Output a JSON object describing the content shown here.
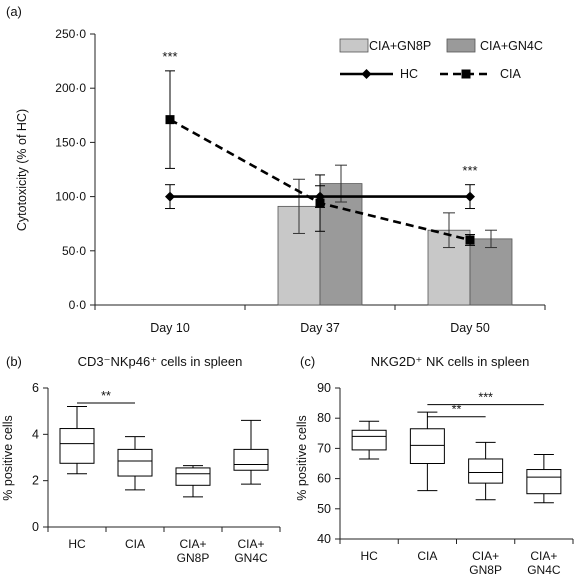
{
  "colors": {
    "axis": "#222222",
    "line": "#000000",
    "bar_light": "#c8c8c8",
    "bar_dark": "#9a9a9a",
    "box_fill": "#ffffff"
  },
  "chart_data": [
    {
      "panel": "(a)",
      "type": "bar",
      "ylabel": "Cytotoxicity (% of HC)",
      "ylim": [
        0,
        250
      ],
      "yticks": [
        "0·0",
        "50·0",
        "100·0",
        "150·0",
        "200·0",
        "250·0"
      ],
      "ytick_values": [
        0,
        50,
        100,
        150,
        200,
        250
      ],
      "categories": [
        "Day 10",
        "Day 37",
        "Day 50"
      ],
      "bar_series": [
        {
          "name": "CIA+GN8P",
          "values": [
            null,
            91,
            69
          ],
          "errors": [
            null,
            25,
            16
          ]
        },
        {
          "name": "CIA+GN4C",
          "values": [
            null,
            112,
            61
          ],
          "errors": [
            null,
            17,
            8
          ]
        }
      ],
      "line_series": [
        {
          "name": "HC",
          "marker": "diamond",
          "dash": "solid",
          "values": [
            100,
            100,
            100
          ],
          "errors": [
            11,
            10,
            11
          ]
        },
        {
          "name": "CIA",
          "marker": "square",
          "dash": "dashed",
          "values": [
            171,
            94,
            60
          ],
          "errors": [
            45,
            26,
            5
          ]
        }
      ],
      "annotations": [
        {
          "category": "Day 10",
          "text": "***",
          "y": 225
        },
        {
          "category": "Day 50",
          "text": "***",
          "y": 120
        }
      ],
      "legend": "top-right"
    },
    {
      "panel": "(b)",
      "type": "box",
      "title": "CD3⁻NKp46⁺ cells in spleen",
      "ylabel": "% positive cells",
      "ylim": [
        0,
        6
      ],
      "yticks": [
        "0",
        "2",
        "4",
        "6"
      ],
      "ytick_values": [
        0,
        2,
        4,
        6
      ],
      "categories": [
        "HC",
        "CIA",
        "CIA+ GN8P",
        "CIA+ GN4C"
      ],
      "category_lines": [
        [
          "HC"
        ],
        [
          "CIA"
        ],
        [
          "CIA+",
          "GN8P"
        ],
        [
          "CIA+",
          "GN4C"
        ]
      ],
      "boxes": [
        {
          "min": 2.3,
          "q1": 2.75,
          "median": 3.6,
          "q3": 4.25,
          "max": 5.2
        },
        {
          "min": 1.6,
          "q1": 2.2,
          "median": 2.85,
          "q3": 3.35,
          "max": 3.9
        },
        {
          "min": 1.3,
          "q1": 1.8,
          "median": 2.3,
          "q3": 2.55,
          "max": 2.65
        },
        {
          "min": 1.85,
          "q1": 2.45,
          "median": 2.7,
          "q3": 3.35,
          "max": 4.6
        }
      ],
      "brackets": [
        {
          "from": 0,
          "to": 1,
          "y": 5.35,
          "text": "**"
        }
      ]
    },
    {
      "panel": "(c)",
      "type": "box",
      "title": "NKG2D⁺ NK cells in spleen",
      "ylabel": "% positive cells",
      "ylim": [
        40,
        90
      ],
      "yticks": [
        "40",
        "50",
        "60",
        "70",
        "80",
        "90"
      ],
      "ytick_values": [
        40,
        50,
        60,
        70,
        80,
        90
      ],
      "categories": [
        "HC",
        "CIA",
        "CIA+ GN8P",
        "CIA+ GN4C"
      ],
      "category_lines": [
        [
          "HC"
        ],
        [
          "CIA"
        ],
        [
          "CIA+",
          "GN8P"
        ],
        [
          "CIA+",
          "GN4C"
        ]
      ],
      "boxes": [
        {
          "min": 66.5,
          "q1": 69.5,
          "median": 74,
          "q3": 76,
          "max": 79
        },
        {
          "min": 56,
          "q1": 65,
          "median": 71,
          "q3": 76.5,
          "max": 82
        },
        {
          "min": 53,
          "q1": 58.5,
          "median": 62,
          "q3": 66.5,
          "max": 72
        },
        {
          "min": 52,
          "q1": 55,
          "median": 60.5,
          "q3": 63,
          "max": 68
        }
      ],
      "brackets": [
        {
          "from": 1,
          "to": 2,
          "y": 80.5,
          "text": "**"
        },
        {
          "from": 1,
          "to": 3,
          "y": 84.5,
          "text": "***"
        }
      ]
    }
  ]
}
